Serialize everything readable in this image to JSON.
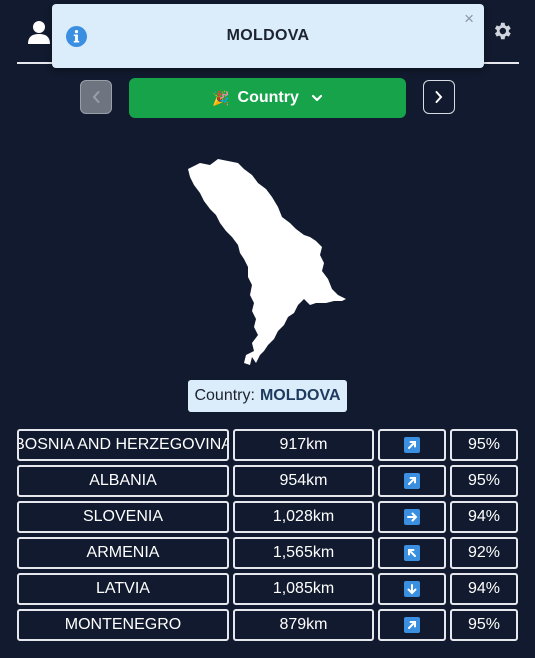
{
  "toast": {
    "message": "MOLDOVA",
    "close": "×"
  },
  "guess_button": {
    "label": "Country"
  },
  "answer": {
    "prefix": "Country:",
    "value": "MOLDOVA"
  },
  "guesses": [
    {
      "country": "BOSNIA AND HERZEGOVINA",
      "distance": "917km",
      "direction": "north-east",
      "percent": "95%"
    },
    {
      "country": "ALBANIA",
      "distance": "954km",
      "direction": "north-east",
      "percent": "95%"
    },
    {
      "country": "SLOVENIA",
      "distance": "1,028km",
      "direction": "east",
      "percent": "94%"
    },
    {
      "country": "ARMENIA",
      "distance": "1,565km",
      "direction": "north-west",
      "percent": "92%"
    },
    {
      "country": "LATVIA",
      "distance": "1,085km",
      "direction": "south",
      "percent": "94%"
    },
    {
      "country": "MONTENEGRO",
      "distance": "879km",
      "direction": "north-east",
      "percent": "95%"
    }
  ],
  "colors": {
    "background": "#111a2e",
    "guess_button": "#16a34a",
    "toast_bg": "#dbecfa",
    "arrow_bg": "#3b8fe0"
  }
}
